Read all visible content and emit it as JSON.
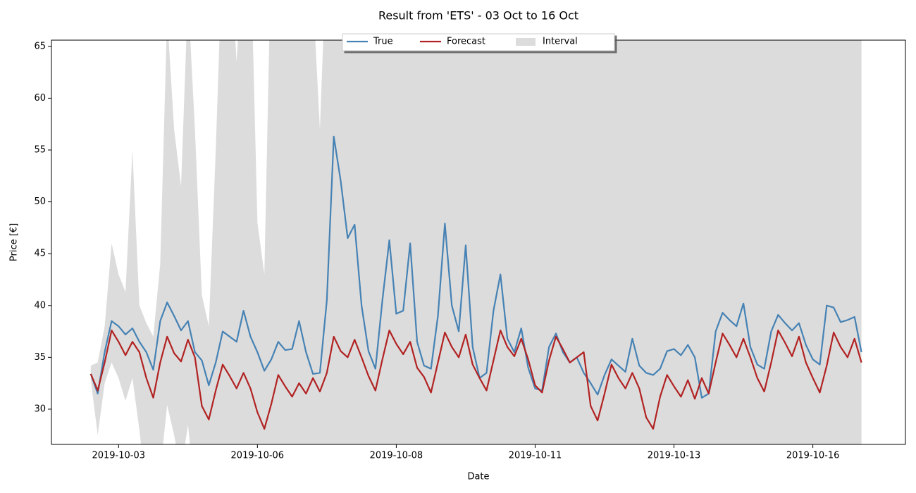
{
  "chart_data": {
    "type": "line",
    "title": "Result from 'ETS' - 03 Oct to 16 Oct",
    "xlabel": "Date",
    "ylabel": "Price [€]",
    "legend": "upper center",
    "xlim": [
      "2019-10-02 07:00",
      "2019-10-17 16:00"
    ],
    "xticks": [
      {
        "value": "2019-10-03 12:00",
        "label": "2019-10-03"
      },
      {
        "value": "2019-10-06 00:00",
        "label": "2019-10-06"
      },
      {
        "value": "2019-10-08 12:00",
        "label": "2019-10-08"
      },
      {
        "value": "2019-10-11 00:00",
        "label": "2019-10-11"
      },
      {
        "value": "2019-10-13 12:00",
        "label": "2019-10-13"
      },
      {
        "value": "2019-10-16 00:00",
        "label": "2019-10-16"
      }
    ],
    "ylim": [
      26.6,
      65.6
    ],
    "yticks": [
      30,
      35,
      40,
      45,
      50,
      55,
      60,
      65
    ],
    "x": [
      "2019-10-03 00:00",
      "2019-10-03 03:00",
      "2019-10-03 06:00",
      "2019-10-03 09:00",
      "2019-10-03 12:00",
      "2019-10-03 15:00",
      "2019-10-03 18:00",
      "2019-10-03 21:00",
      "2019-10-04 00:00",
      "2019-10-04 03:00",
      "2019-10-04 06:00",
      "2019-10-04 09:00",
      "2019-10-04 12:00",
      "2019-10-04 15:00",
      "2019-10-04 18:00",
      "2019-10-04 21:00",
      "2019-10-05 00:00",
      "2019-10-05 03:00",
      "2019-10-05 06:00",
      "2019-10-05 09:00",
      "2019-10-05 12:00",
      "2019-10-05 15:00",
      "2019-10-05 18:00",
      "2019-10-05 21:00",
      "2019-10-06 00:00",
      "2019-10-06 03:00",
      "2019-10-06 06:00",
      "2019-10-06 09:00",
      "2019-10-06 12:00",
      "2019-10-06 15:00",
      "2019-10-06 18:00",
      "2019-10-06 21:00",
      "2019-10-07 00:00",
      "2019-10-07 03:00",
      "2019-10-07 06:00",
      "2019-10-07 09:00",
      "2019-10-07 12:00",
      "2019-10-07 15:00",
      "2019-10-07 18:00",
      "2019-10-07 21:00",
      "2019-10-08 00:00",
      "2019-10-08 03:00",
      "2019-10-08 06:00",
      "2019-10-08 09:00",
      "2019-10-08 12:00",
      "2019-10-08 15:00",
      "2019-10-08 18:00",
      "2019-10-08 21:00",
      "2019-10-09 00:00",
      "2019-10-09 03:00",
      "2019-10-09 06:00",
      "2019-10-09 09:00",
      "2019-10-09 12:00",
      "2019-10-09 15:00",
      "2019-10-09 18:00",
      "2019-10-09 21:00",
      "2019-10-10 00:00",
      "2019-10-10 03:00",
      "2019-10-10 06:00",
      "2019-10-10 09:00",
      "2019-10-10 12:00",
      "2019-10-10 15:00",
      "2019-10-10 18:00",
      "2019-10-10 21:00",
      "2019-10-11 00:00",
      "2019-10-11 03:00",
      "2019-10-11 06:00",
      "2019-10-11 09:00",
      "2019-10-11 12:00",
      "2019-10-11 15:00",
      "2019-10-11 18:00",
      "2019-10-11 21:00",
      "2019-10-12 00:00",
      "2019-10-12 03:00",
      "2019-10-12 06:00",
      "2019-10-12 09:00",
      "2019-10-12 12:00",
      "2019-10-12 15:00",
      "2019-10-12 18:00",
      "2019-10-12 21:00",
      "2019-10-13 00:00",
      "2019-10-13 03:00",
      "2019-10-13 06:00",
      "2019-10-13 09:00",
      "2019-10-13 12:00",
      "2019-10-13 15:00",
      "2019-10-13 18:00",
      "2019-10-13 21:00",
      "2019-10-14 00:00",
      "2019-10-14 03:00",
      "2019-10-14 06:00",
      "2019-10-14 09:00",
      "2019-10-14 12:00",
      "2019-10-14 15:00",
      "2019-10-14 18:00",
      "2019-10-14 21:00",
      "2019-10-15 00:00",
      "2019-10-15 03:00",
      "2019-10-15 06:00",
      "2019-10-15 09:00",
      "2019-10-15 12:00",
      "2019-10-15 15:00",
      "2019-10-15 18:00",
      "2019-10-15 21:00",
      "2019-10-16 00:00",
      "2019-10-16 03:00",
      "2019-10-16 06:00",
      "2019-10-16 09:00",
      "2019-10-16 12:00",
      "2019-10-16 15:00",
      "2019-10-16 18:00",
      "2019-10-16 21:00"
    ],
    "series": [
      {
        "name": "True",
        "color": "#4682b4",
        "values": [
          33.4,
          31.5,
          35.5,
          38.5,
          38,
          37.2,
          37.8,
          36.5,
          35.5,
          33.8,
          38.5,
          40.3,
          39,
          37.6,
          38.5,
          35.5,
          34.7,
          32.3,
          34.5,
          37.5,
          37,
          36.5,
          39.5,
          37,
          35.5,
          33.7,
          34.8,
          36.5,
          35.7,
          35.8,
          38.5,
          35.5,
          33.4,
          33.5,
          40.5,
          56.3,
          52,
          46.5,
          47.8,
          40,
          35.6,
          33.9,
          40.5,
          46.3,
          39.2,
          39.5,
          46,
          36.5,
          34.2,
          33.9,
          39,
          47.9,
          40,
          37.5,
          45.8,
          36,
          33,
          33.5,
          39.5,
          43,
          36.8,
          35.5,
          37.8,
          34,
          32,
          31.8,
          36,
          37.3,
          35.5,
          34.5,
          35,
          33.5,
          32.5,
          31.4,
          33.3,
          34.8,
          34.2,
          33.6,
          36.8,
          34.2,
          33.5,
          33.3,
          33.9,
          35.6,
          35.8,
          35.2,
          36.2,
          35,
          31.1,
          31.5,
          37.5,
          39.3,
          38.6,
          38,
          40.2,
          36,
          34.3,
          33.9,
          37.5,
          39.1,
          38.3,
          37.6,
          38.3,
          36.2,
          34.8,
          34.3,
          40,
          39.8,
          38.4,
          38.6,
          38.9,
          35.5
        ]
      },
      {
        "name": "Forecast",
        "color": "#b22222",
        "values": [
          33.4,
          31.8,
          34.5,
          37.6,
          36.5,
          35.2,
          36.5,
          35.5,
          33,
          31.1,
          34.5,
          37,
          35.4,
          34.6,
          36.7,
          35,
          30.3,
          29,
          31.8,
          34.3,
          33.2,
          32,
          33.5,
          32,
          29.7,
          28.1,
          30.5,
          33.3,
          32.2,
          31.2,
          32.5,
          31.5,
          33,
          31.7,
          33.5,
          37,
          35.6,
          35,
          36.7,
          35,
          33.2,
          31.8,
          34.8,
          37.6,
          36.3,
          35.3,
          36.5,
          34,
          33.1,
          31.6,
          34.5,
          37.4,
          36,
          35,
          37.2,
          34.3,
          33,
          31.8,
          34.7,
          37.6,
          36,
          35.1,
          36.8,
          34.8,
          32.3,
          31.6,
          34.7,
          37,
          35.8,
          34.5,
          35,
          35.5,
          30.3,
          28.9,
          31.5,
          34.3,
          33,
          32,
          33.5,
          32,
          29.2,
          28.1,
          31.2,
          33.3,
          32.2,
          31.2,
          32.8,
          31,
          33,
          31.5,
          34.5,
          37.3,
          36.2,
          35,
          36.8,
          35,
          33,
          31.7,
          34.5,
          37.6,
          36.4,
          35.1,
          37,
          34.5,
          33,
          31.6,
          34.2,
          37.4,
          36,
          35,
          36.8,
          34.5
        ]
      },
      {
        "name": "Interval",
        "color": "#dcdcdc",
        "type": "band",
        "upper": [
          34.2,
          34.5,
          38,
          46,
          43,
          41.3,
          55,
          40,
          38.3,
          37,
          44,
          68,
          57,
          51.5,
          70,
          57,
          41,
          38,
          55,
          75,
          75,
          63.5,
          75,
          75,
          48,
          43,
          75,
          75,
          75,
          75,
          75,
          75,
          70,
          57,
          75,
          75,
          75,
          75,
          75,
          75,
          75,
          75,
          75,
          75,
          75,
          75,
          75,
          75,
          75,
          75,
          75,
          75,
          75,
          75,
          75,
          75,
          75,
          75,
          75,
          75,
          75,
          75,
          75,
          75,
          75,
          75,
          75,
          75,
          75,
          75,
          75,
          75,
          75,
          75,
          75,
          75,
          75,
          75,
          75,
          75,
          75,
          75,
          75,
          75,
          75,
          75,
          75,
          75,
          75,
          75,
          75,
          75,
          75,
          75,
          75,
          75,
          75,
          75,
          75,
          75,
          75,
          75,
          75,
          75,
          75,
          75,
          75,
          75,
          75,
          75,
          75,
          75
        ],
        "lower": [
          32.8,
          27.5,
          32.5,
          34.5,
          33,
          30.8,
          33,
          28,
          22,
          22,
          24,
          30.4,
          27.5,
          24,
          28.5,
          22,
          22,
          22,
          22,
          22,
          22,
          22,
          22,
          22,
          22,
          22,
          22,
          22,
          22,
          22,
          22,
          22,
          22,
          22,
          22,
          22,
          22,
          22,
          22,
          22,
          22,
          22,
          22,
          22,
          22,
          22,
          22,
          22,
          22,
          22,
          22,
          22,
          22,
          22,
          22,
          22,
          22,
          22,
          22,
          22,
          22,
          22,
          22,
          22,
          22,
          22,
          22,
          22,
          22,
          22,
          22,
          22,
          22,
          22,
          22,
          22,
          22,
          22,
          22,
          22,
          22,
          22,
          22,
          22,
          22,
          22,
          22,
          22,
          22,
          22,
          22,
          22,
          22,
          22,
          22,
          22,
          22,
          22,
          22,
          22,
          22,
          22,
          22,
          22,
          22,
          22,
          22,
          22,
          22,
          22,
          22,
          22
        ]
      }
    ]
  }
}
